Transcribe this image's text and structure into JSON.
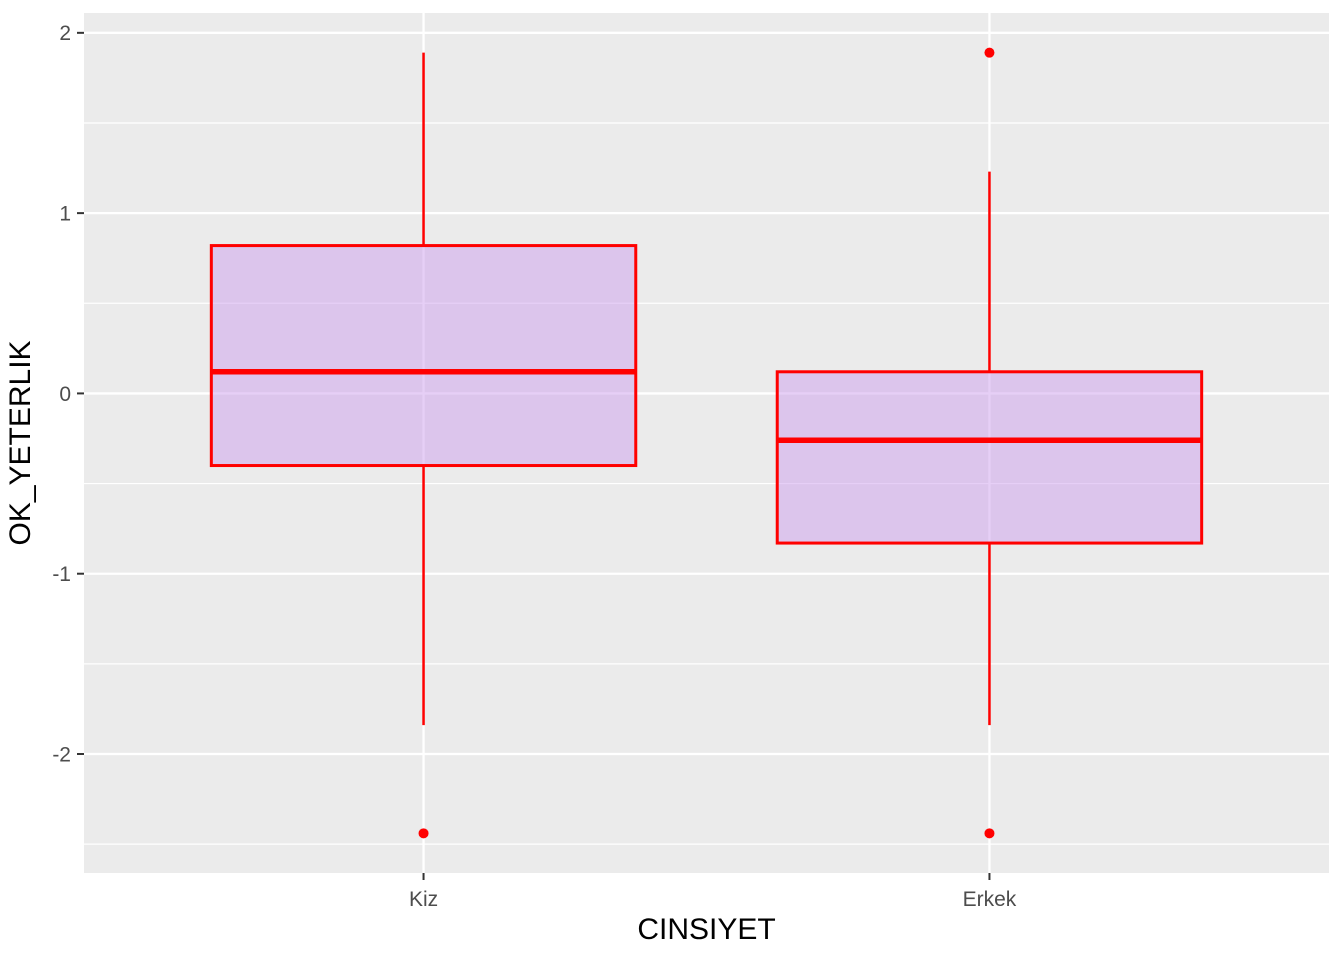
{
  "figure": {
    "background": "#FFFFFF",
    "panel_background": "#EBEBEB",
    "grid_major_color": "#FFFFFF",
    "grid_minor_color": "#FFFFFF",
    "tick_mark_color": "#333333",
    "axis_text_color": "#4D4D4D",
    "axis_title_color": "#000000"
  },
  "chart_data": {
    "type": "boxplot",
    "title": "",
    "xlabel": "CINSIYET",
    "ylabel": "OK_YETERLIK",
    "categories": [
      "Kiz",
      "Erkek"
    ],
    "series": [
      {
        "category": "Kiz",
        "whisker_low": -1.84,
        "q1": -0.4,
        "median": 0.12,
        "q3": 0.82,
        "whisker_high": 1.89,
        "outliers": [
          -2.44
        ]
      },
      {
        "category": "Erkek",
        "whisker_low": -1.84,
        "q1": -0.83,
        "median": -0.26,
        "q3": 0.12,
        "whisker_high": 1.23,
        "outliers": [
          1.89,
          -2.44
        ]
      }
    ],
    "box_fill": "#CD9FED",
    "box_fill_opacity": 0.5,
    "box_stroke": "#FF0000",
    "outlier_color": "#FF0000",
    "ylim": [
      -2.66,
      2.11
    ],
    "yticks": [
      {
        "value": 2,
        "label": "2"
      },
      {
        "value": 1,
        "label": "1"
      },
      {
        "value": 0,
        "label": "0"
      },
      {
        "value": -1,
        "label": "-1"
      },
      {
        "value": -2,
        "label": "-2"
      }
    ],
    "yticks_minor": [
      1.5,
      0.5,
      -0.5,
      -1.5,
      -2.5
    ],
    "x_domain": [
      0.4,
      2.6
    ],
    "box_width": 0.75,
    "legend": "none",
    "grid": "on"
  }
}
